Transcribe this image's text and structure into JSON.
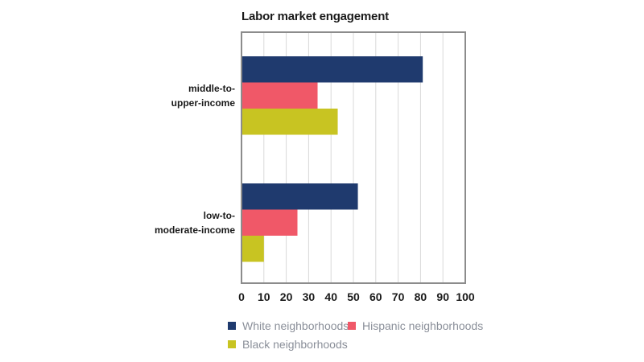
{
  "chart_data": {
    "type": "bar",
    "orientation": "horizontal",
    "title": "Labor market engagement",
    "categories": [
      [
        "middle-to-",
        "upper-income"
      ],
      [
        "low-to-",
        "moderate-income"
      ]
    ],
    "series": [
      {
        "name": "White neighborhoods",
        "color": "#1f3a6e",
        "values": [
          81,
          52
        ]
      },
      {
        "name": "Hispanic neighborhoods",
        "color": "#f05868",
        "values": [
          34,
          25
        ]
      },
      {
        "name": "Black neighborhoods",
        "color": "#c8c422",
        "values": [
          43,
          10
        ]
      }
    ],
    "xlim": [
      0,
      100
    ],
    "xticks": [
      0,
      10,
      20,
      30,
      40,
      50,
      60,
      70,
      80,
      90,
      100
    ],
    "grid": true,
    "legend_position": "bottom"
  }
}
